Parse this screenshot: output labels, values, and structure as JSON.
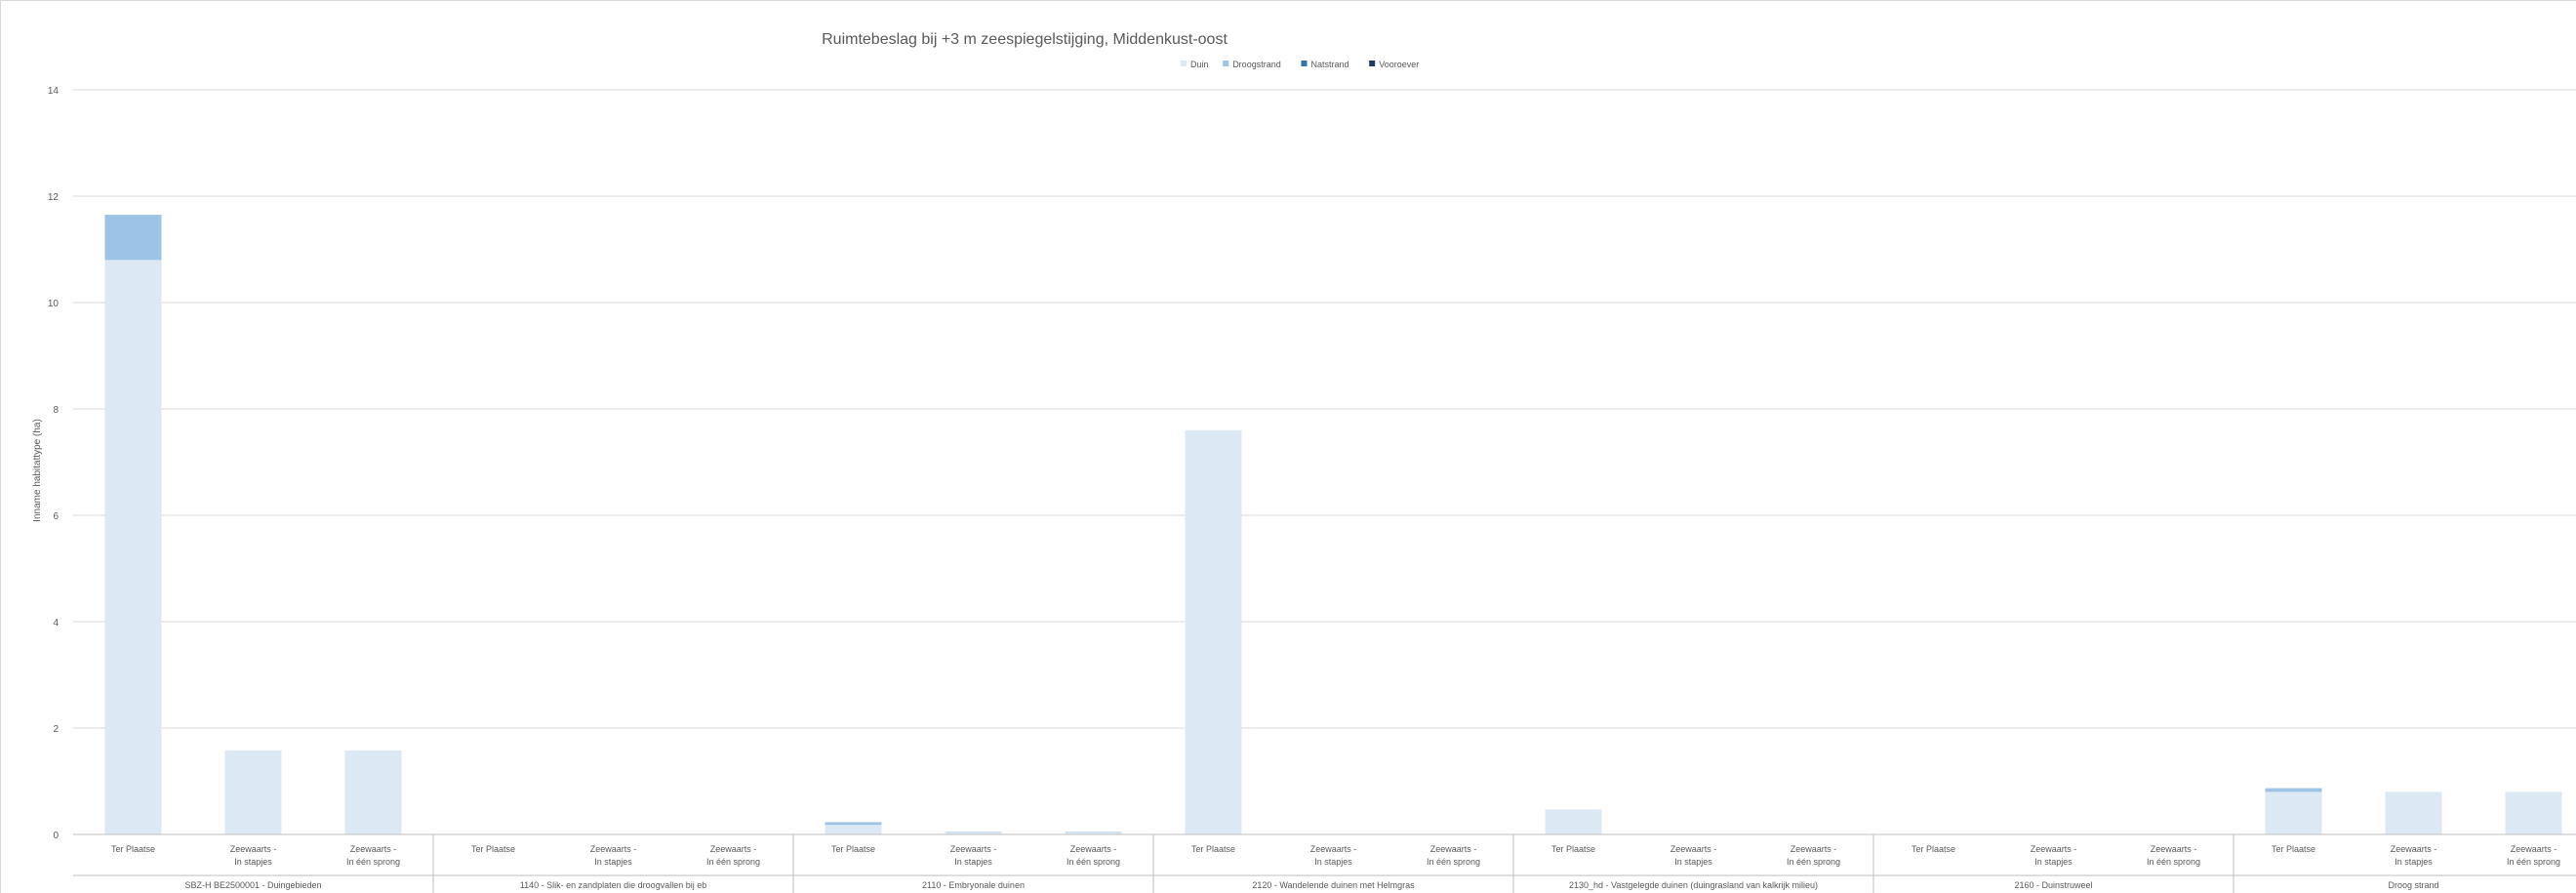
{
  "chart_data": {
    "type": "bar",
    "stacked": true,
    "title": "Ruimtebeslag  bij +3 m zeespiegelstijging, Middenkust-oost",
    "ylabel": "Inname habitattype (ha)",
    "xlabel": "",
    "ylim": [
      0,
      14
    ],
    "yticks": [
      0,
      2,
      4,
      6,
      8,
      10,
      12,
      14
    ],
    "grid": true,
    "legend_position": "top",
    "groups": [
      {
        "label": "SBZ-H BE2500001 - Duingebieden",
        "categories": [
          "Ter Plaatse",
          "Zeewaarts - In stapjes",
          "Zeewaarts - In één sprong"
        ]
      },
      {
        "label": "1140 - Slik- en zandplaten die droogvallen bij eb",
        "categories": [
          "Ter Plaatse",
          "Zeewaarts - In stapjes",
          "Zeewaarts - In één sprong"
        ]
      },
      {
        "label": "2110 - Embryonale duinen",
        "categories": [
          "Ter Plaatse",
          "Zeewaarts - In stapjes",
          "Zeewaarts - In één sprong"
        ]
      },
      {
        "label": "2120 - Wandelende duinen met Helmgras",
        "categories": [
          "Ter Plaatse",
          "Zeewaarts - In stapjes",
          "Zeewaarts - In één sprong"
        ]
      },
      {
        "label": "2130_hd - Vastgelegde duinen (duingrasland van kalkrijk milieu)",
        "categories": [
          "Ter Plaatse",
          "Zeewaarts - In stapjes",
          "Zeewaarts - In één sprong"
        ]
      },
      {
        "label": "2160 - Duinstruweel",
        "categories": [
          "Ter Plaatse",
          "Zeewaarts - In stapjes",
          "Zeewaarts - In één sprong"
        ]
      },
      {
        "label": "Droog strand",
        "categories": [
          "Ter Plaatse",
          "Zeewaarts - In stapjes",
          "Zeewaarts - In één sprong"
        ]
      }
    ],
    "series": [
      {
        "name": "Duin",
        "color": "#dce9f5",
        "values": [
          10.8,
          1.58,
          1.58,
          0,
          0,
          0,
          0.18,
          0.04,
          0.04,
          7.6,
          0,
          0,
          0.47,
          0,
          0,
          0,
          0,
          0,
          0.8,
          0.8,
          0.8
        ]
      },
      {
        "name": "Droogstrand",
        "color": "#9dc3e6",
        "values": [
          0.85,
          0,
          0,
          0,
          0,
          0,
          0.05,
          0.01,
          0.01,
          0,
          0,
          0,
          0,
          0,
          0,
          0,
          0,
          0,
          0.07,
          0,
          0
        ]
      },
      {
        "name": "Natstrand",
        "color": "#2e75b6",
        "values": [
          0,
          0,
          0,
          0,
          0,
          0,
          0,
          0,
          0,
          0,
          0,
          0,
          0,
          0,
          0,
          0,
          0,
          0,
          0,
          0,
          0
        ]
      },
      {
        "name": "Vooroever",
        "color": "#1f3864",
        "values": [
          0,
          0,
          0,
          0,
          0,
          0,
          0,
          0,
          0,
          0,
          0,
          0,
          0,
          0,
          0,
          0,
          0,
          0,
          0,
          0,
          0
        ]
      }
    ]
  }
}
